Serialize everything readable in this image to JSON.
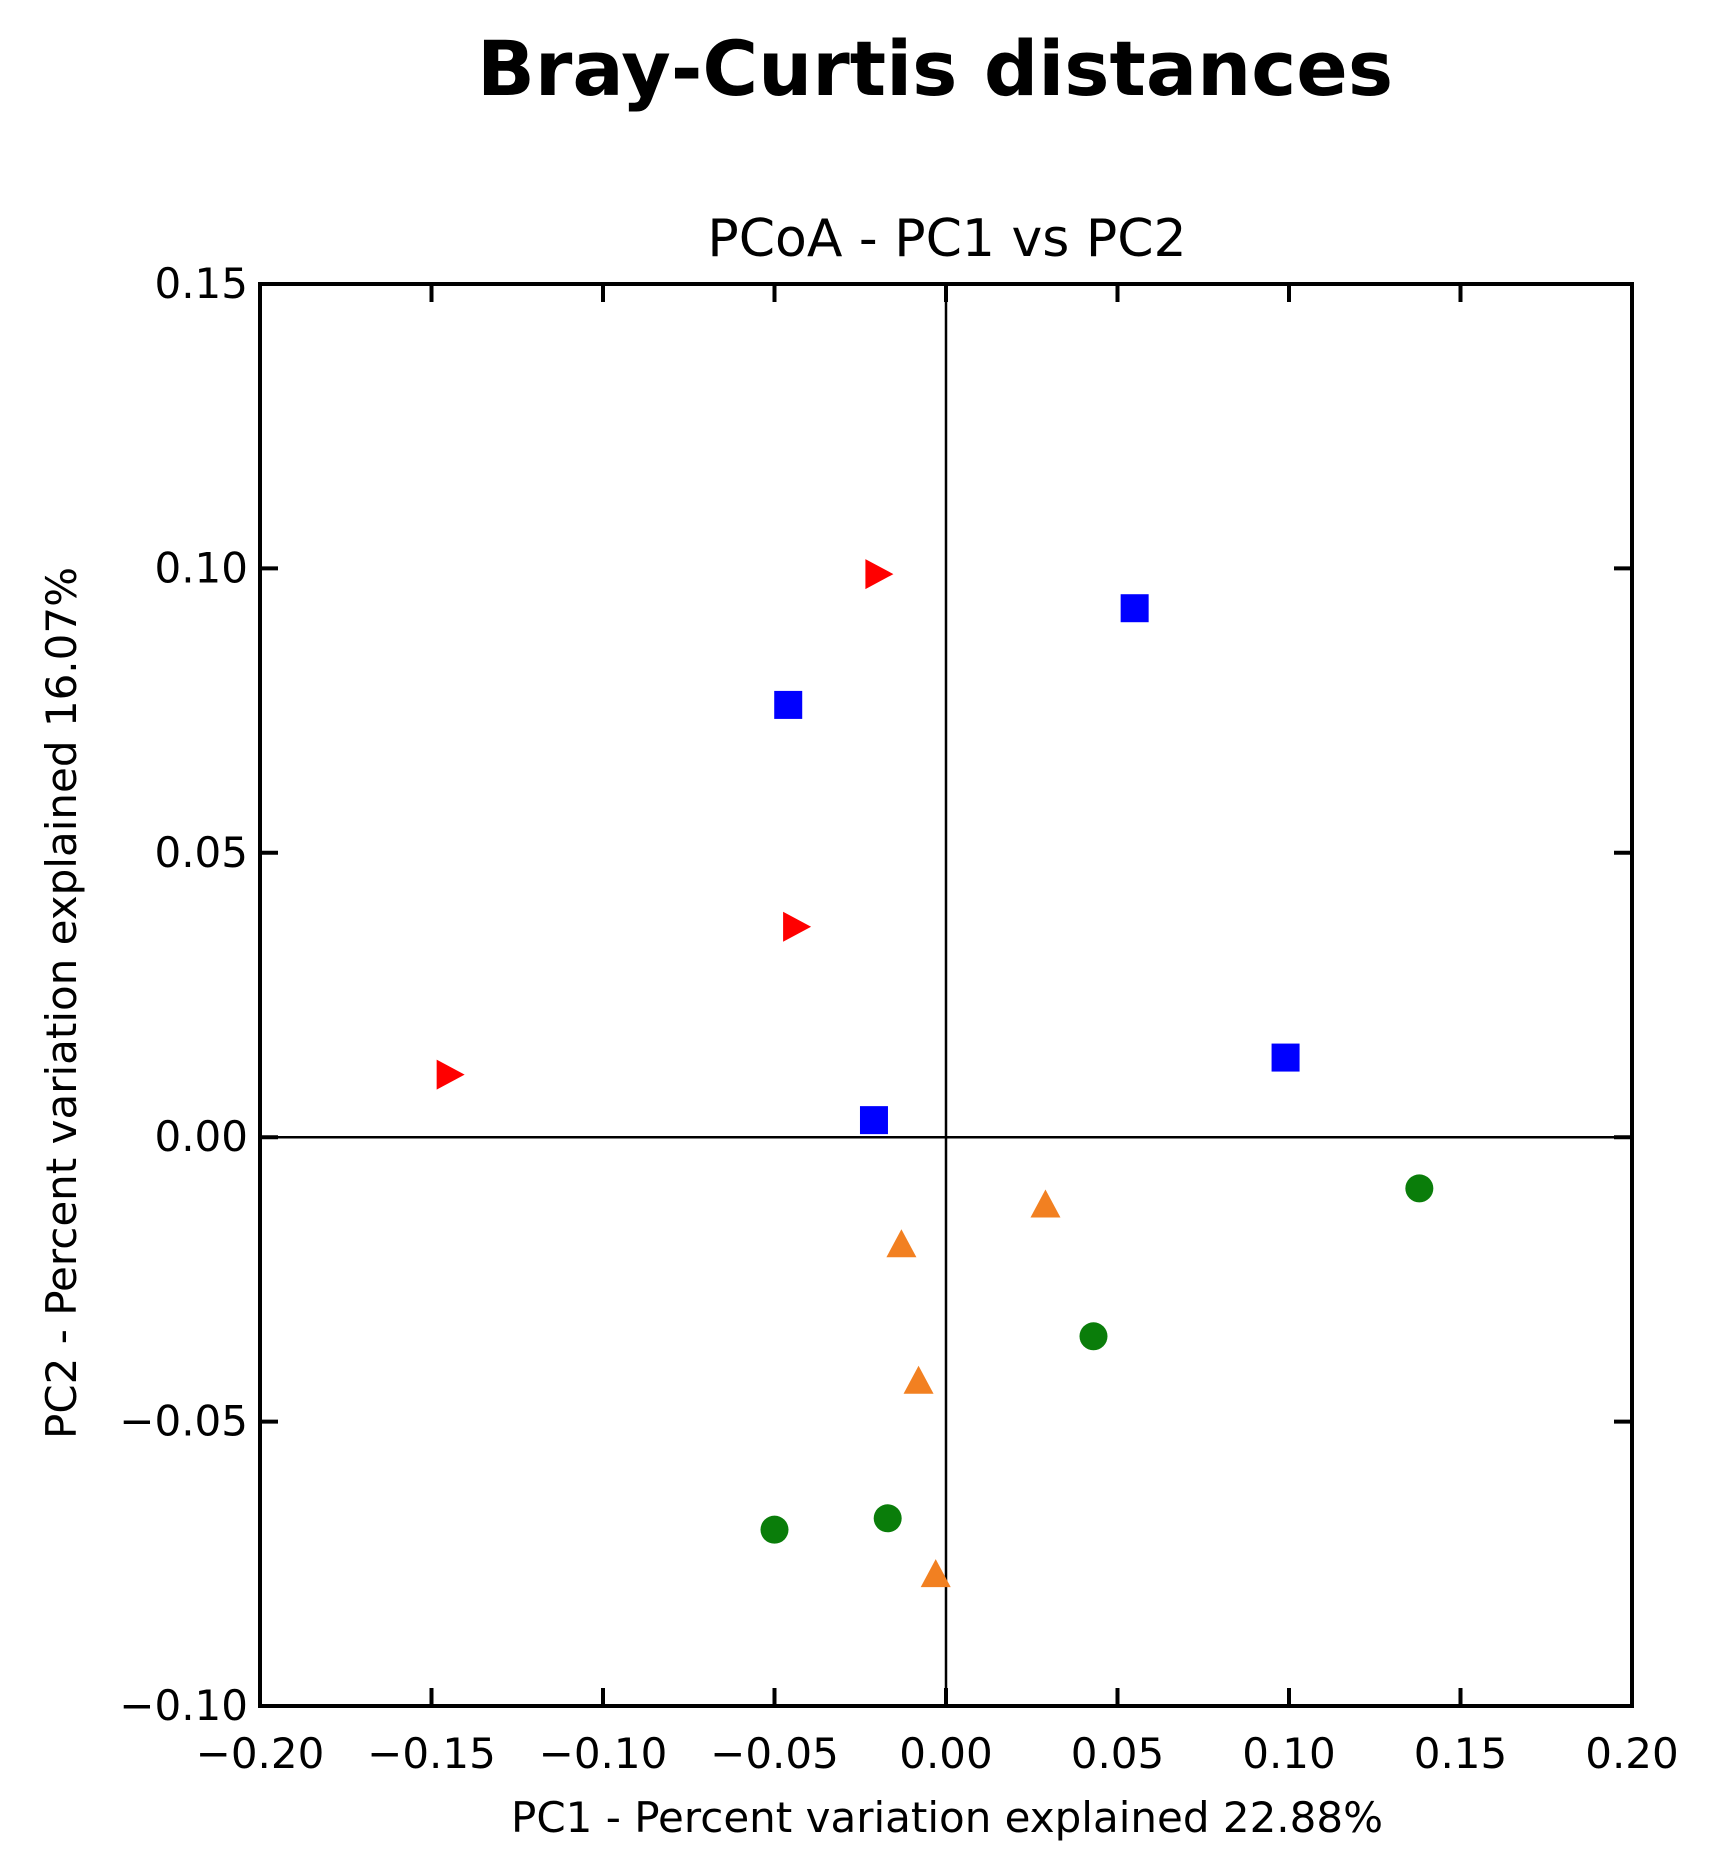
{
  "figure_title": "Bray-Curtis distances",
  "chart_data": {
    "type": "scatter",
    "title": "PCoA - PC1 vs PC2",
    "xlabel": "PC1 - Percent variation explained 22.88%",
    "ylabel": "PC2 - Percent variation explained 16.07%",
    "xlim": [
      -0.2,
      0.2
    ],
    "ylim": [
      -0.1,
      0.15
    ],
    "xticks": [
      -0.2,
      -0.15,
      -0.1,
      -0.05,
      0.0,
      0.05,
      0.1,
      0.15,
      0.2
    ],
    "xtick_labels": [
      "−0.20",
      "−0.15",
      "−0.10",
      "−0.05",
      "0.00",
      "0.05",
      "0.10",
      "0.15",
      "0.20"
    ],
    "yticks": [
      -0.1,
      -0.05,
      0.0,
      0.05,
      0.1,
      0.15
    ],
    "ytick_labels": [
      "−0.10",
      "−0.05",
      "0.00",
      "0.05",
      "0.10",
      "0.15"
    ],
    "zero_lines": true,
    "grid": false,
    "legend": false,
    "series": [
      {
        "marker": "triangle-right",
        "color": "#ff0000",
        "points": [
          [
            -0.02,
            0.099
          ],
          [
            -0.044,
            0.037
          ],
          [
            -0.145,
            0.011
          ]
        ]
      },
      {
        "marker": "square",
        "color": "#0000ff",
        "points": [
          [
            0.055,
            0.093
          ],
          [
            -0.046,
            0.076
          ],
          [
            0.099,
            0.014
          ],
          [
            -0.021,
            0.003
          ]
        ]
      },
      {
        "marker": "triangle-up",
        "color": "#f28021",
        "points": [
          [
            0.029,
            -0.012
          ],
          [
            -0.013,
            -0.019
          ],
          [
            -0.008,
            -0.043
          ],
          [
            -0.003,
            -0.077
          ]
        ]
      },
      {
        "marker": "circle",
        "color": "#0a7d0a",
        "points": [
          [
            0.138,
            -0.009
          ],
          [
            0.043,
            -0.035
          ],
          [
            -0.05,
            -0.069
          ],
          [
            -0.017,
            -0.067
          ]
        ]
      }
    ]
  }
}
